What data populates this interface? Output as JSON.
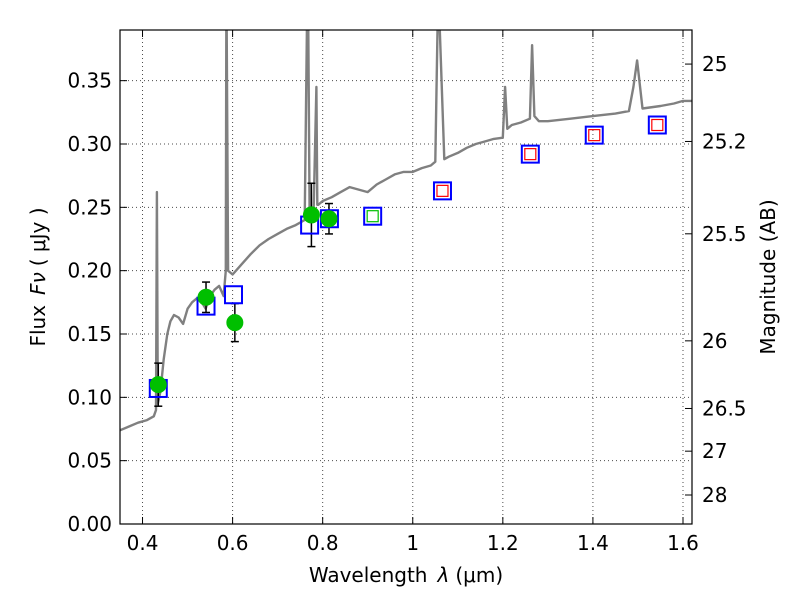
{
  "chart_data": {
    "type": "line",
    "title": "",
    "xlabel_prefix": "Wavelength",
    "xlabel_symbol": "λ",
    "xlabel_unit": "(μm)",
    "ylabel_prefix": "Flux",
    "ylabel_symbol": "Fν",
    "ylabel_unit": "( μJy )",
    "y2label": "Magnitude (AB)",
    "xlim": [
      0.35,
      1.62
    ],
    "ylim": [
      0.0,
      0.39
    ],
    "grid": true,
    "x_ticks": [
      0.4,
      0.6,
      0.8,
      1.0,
      1.2,
      1.4,
      1.6
    ],
    "x_tick_labels": [
      "0.4",
      "0.6",
      "0.8",
      "1",
      "1.2",
      "1.4",
      "1.6"
    ],
    "y_ticks": [
      0.0,
      0.05,
      0.1,
      0.15,
      0.2,
      0.25,
      0.3,
      0.35
    ],
    "y_tick_labels": [
      "0.00",
      "0.05",
      "0.10",
      "0.15",
      "0.20",
      "0.25",
      "0.30",
      "0.35"
    ],
    "y2_ticks": [
      {
        "label": "25",
        "flux": 0.3631
      },
      {
        "label": "25.2",
        "flux": 0.302
      },
      {
        "label": "25.5",
        "flux": 0.2291
      },
      {
        "label": "26",
        "flux": 0.1446
      },
      {
        "label": "26.5",
        "flux": 0.0912
      },
      {
        "label": "27",
        "flux": 0.0575
      },
      {
        "label": "28",
        "flux": 0.0229
      }
    ],
    "model_spectrum": {
      "color": "#808080",
      "x": [
        0.35,
        0.37,
        0.39,
        0.41,
        0.425,
        0.43,
        0.432,
        0.434,
        0.436,
        0.44,
        0.447,
        0.455,
        0.462,
        0.47,
        0.48,
        0.49,
        0.5,
        0.51,
        0.52,
        0.53,
        0.54,
        0.55,
        0.56,
        0.57,
        0.58,
        0.585,
        0.586,
        0.587,
        0.59,
        0.6,
        0.62,
        0.64,
        0.66,
        0.68,
        0.7,
        0.72,
        0.74,
        0.76,
        0.765,
        0.768,
        0.771,
        0.78,
        0.786,
        0.788,
        0.79,
        0.8,
        0.82,
        0.84,
        0.86,
        0.88,
        0.9,
        0.92,
        0.94,
        0.96,
        0.98,
        1.0,
        1.02,
        1.04,
        1.05,
        1.055,
        1.06,
        1.07,
        1.08,
        1.1,
        1.12,
        1.14,
        1.16,
        1.18,
        1.2,
        1.205,
        1.21,
        1.22,
        1.24,
        1.26,
        1.265,
        1.27,
        1.28,
        1.3,
        1.35,
        1.4,
        1.45,
        1.48,
        1.49,
        1.498,
        1.51,
        1.55,
        1.58,
        1.6,
        1.62
      ],
      "y": [
        0.074,
        0.077,
        0.08,
        0.082,
        0.085,
        0.09,
        0.262,
        0.095,
        0.098,
        0.105,
        0.13,
        0.15,
        0.16,
        0.165,
        0.163,
        0.158,
        0.17,
        0.175,
        0.178,
        0.176,
        0.17,
        0.18,
        0.185,
        0.188,
        0.18,
        0.2,
        0.39,
        0.39,
        0.2,
        0.197,
        0.205,
        0.213,
        0.22,
        0.225,
        0.229,
        0.233,
        0.236,
        0.24,
        0.39,
        0.39,
        0.245,
        0.25,
        0.345,
        0.252,
        0.252,
        0.255,
        0.258,
        0.262,
        0.266,
        0.264,
        0.262,
        0.268,
        0.272,
        0.276,
        0.278,
        0.278,
        0.281,
        0.283,
        0.286,
        0.39,
        0.39,
        0.288,
        0.29,
        0.293,
        0.297,
        0.3,
        0.302,
        0.304,
        0.305,
        0.345,
        0.312,
        0.315,
        0.317,
        0.32,
        0.378,
        0.322,
        0.318,
        0.318,
        0.32,
        0.322,
        0.324,
        0.326,
        0.345,
        0.366,
        0.328,
        0.33,
        0.332,
        0.334,
        0.334
      ]
    },
    "observed": {
      "color": "#00bf00",
      "points": [
        {
          "x": 0.435,
          "y": 0.11,
          "err": 0.017
        },
        {
          "x": 0.541,
          "y": 0.179,
          "err": 0.012
        },
        {
          "x": 0.605,
          "y": 0.159,
          "err": 0.015
        },
        {
          "x": 0.775,
          "y": 0.244,
          "err": 0.025
        },
        {
          "x": 0.814,
          "y": 0.241,
          "err": 0.012
        }
      ]
    },
    "model_bands": {
      "color": "#0000ff",
      "points": [
        {
          "x": 0.435,
          "y": 0.107
        },
        {
          "x": 0.541,
          "y": 0.172
        },
        {
          "x": 0.602,
          "y": 0.181
        },
        {
          "x": 0.771,
          "y": 0.236
        },
        {
          "x": 0.815,
          "y": 0.241
        },
        {
          "x": 0.911,
          "y": 0.243
        },
        {
          "x": 1.066,
          "y": 0.263
        },
        {
          "x": 1.261,
          "y": 0.292
        },
        {
          "x": 1.403,
          "y": 0.307
        },
        {
          "x": 1.543,
          "y": 0.315
        }
      ]
    },
    "inner_markers": [
      {
        "x": 0.911,
        "y": 0.243,
        "color": "#00bf00"
      },
      {
        "x": 1.066,
        "y": 0.263,
        "color": "#ff0000"
      },
      {
        "x": 1.261,
        "y": 0.292,
        "color": "#ff0000"
      },
      {
        "x": 1.403,
        "y": 0.307,
        "color": "#ff0000"
      },
      {
        "x": 1.543,
        "y": 0.315,
        "color": "#ff0000"
      }
    ]
  }
}
